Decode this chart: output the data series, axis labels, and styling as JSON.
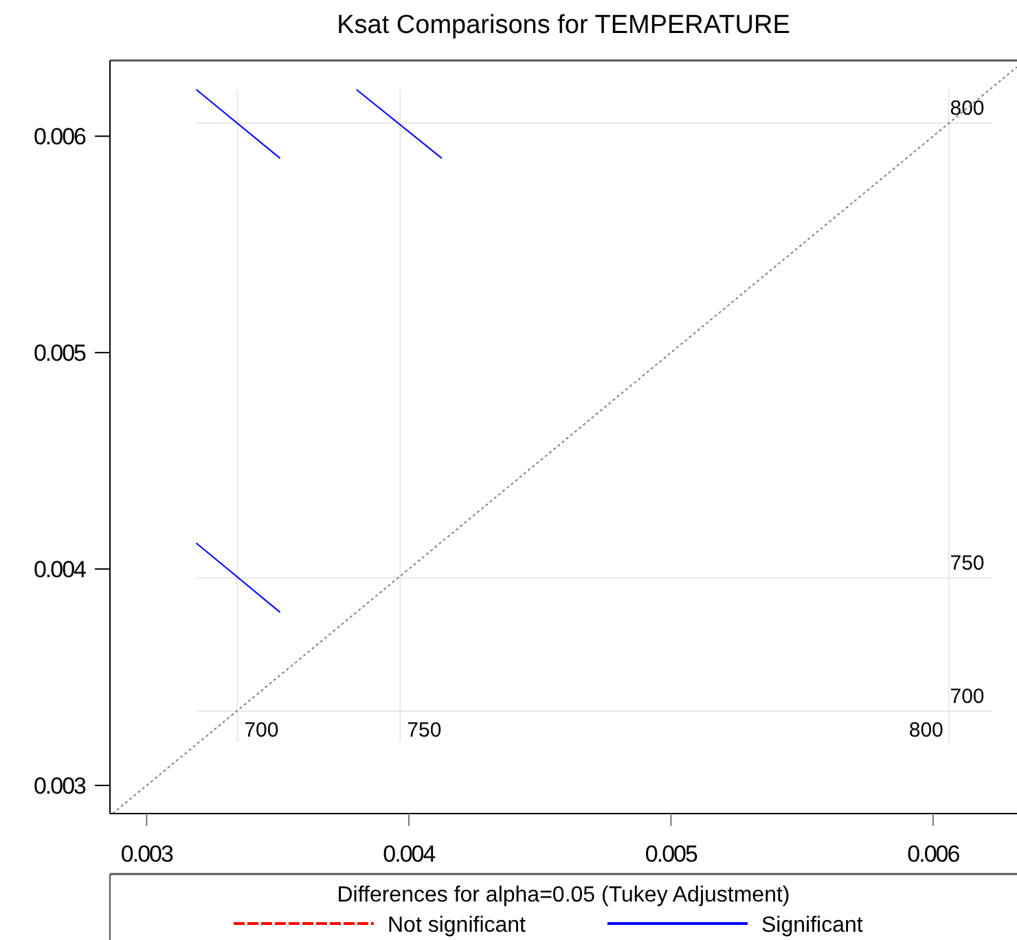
{
  "chart_data": {
    "type": "line",
    "title": "Ksat Comparisons for TEMPERATURE",
    "legend_title": "Differences for alpha=0.05 (Tukey Adjustment)",
    "legend": "bottom",
    "xlim": [
      0.00286,
      0.00632
    ],
    "ylim": [
      0.00287,
      0.00635
    ],
    "xticks": [
      0.003,
      0.004,
      0.005,
      0.006
    ],
    "yticks": [
      0.003,
      0.004,
      0.005,
      0.006
    ],
    "series": [
      {
        "color": "#808080",
        "line_style": "dotted",
        "x": [
          0.00287,
          0.00632
        ],
        "values": [
          0.00287,
          0.00632
        ]
      },
      {
        "name": "Not significant",
        "color": "#ff0000",
        "line_style": "dashed"
      },
      {
        "name": "Significant",
        "color": "#0000ff",
        "line_style": "solid",
        "x": [
          0.003189,
          0.003509
        ],
        "values": [
          0.006216,
          0.005898
        ]
      },
      {
        "color": "#0000ff",
        "line_style": "solid",
        "x": [
          0.0038,
          0.004126
        ],
        "values": [
          0.006216,
          0.005898
        ]
      },
      {
        "color": "#0000ff",
        "line_style": "solid",
        "x": [
          0.003189,
          0.003509
        ],
        "values": [
          0.00412,
          0.0038
        ]
      }
    ],
    "ref_lines": [
      {
        "axis": "x",
        "value": 0.003346,
        "color": "#e8e8e8"
      },
      {
        "axis": "x",
        "value": 0.003967,
        "color": "#e8e8e8"
      },
      {
        "axis": "x",
        "value": 0.00606,
        "color": "#e8e8e8"
      },
      {
        "axis": "y",
        "value": 0.003343,
        "color": "#e8e8e8"
      },
      {
        "axis": "y",
        "value": 0.00396,
        "color": "#e8e8e8"
      },
      {
        "axis": "y",
        "value": 0.00606,
        "color": "#e8e8e8"
      }
    ],
    "annotations": [
      {
        "text": "700",
        "x": 0.003346,
        "y": 0.00325
      },
      {
        "text": "750",
        "x": 0.003967,
        "y": 0.00325
      },
      {
        "text": "800",
        "x": 0.00606,
        "y": 0.00325
      },
      {
        "text": "700",
        "x": 0.00613,
        "y": 0.003343
      },
      {
        "text": "750",
        "x": 0.00613,
        "y": 0.00396
      },
      {
        "text": "800",
        "x": 0.00613,
        "y": 0.00606
      }
    ]
  }
}
